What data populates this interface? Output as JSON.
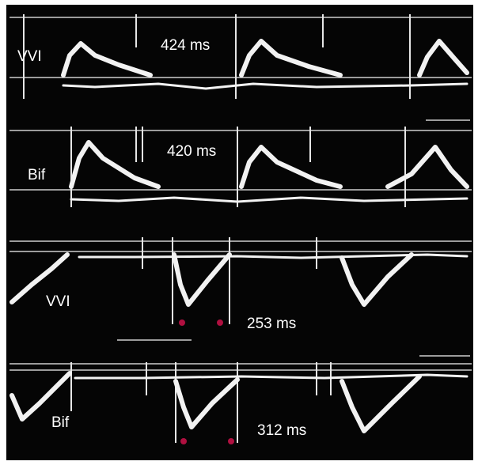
{
  "panels": [
    {
      "mode": "VVI",
      "interval": "424 ms"
    },
    {
      "mode": "Bif",
      "interval": "420 ms"
    },
    {
      "mode": "VVI",
      "interval": "253 ms"
    },
    {
      "mode": "Bif",
      "interval": "312 ms"
    }
  ]
}
